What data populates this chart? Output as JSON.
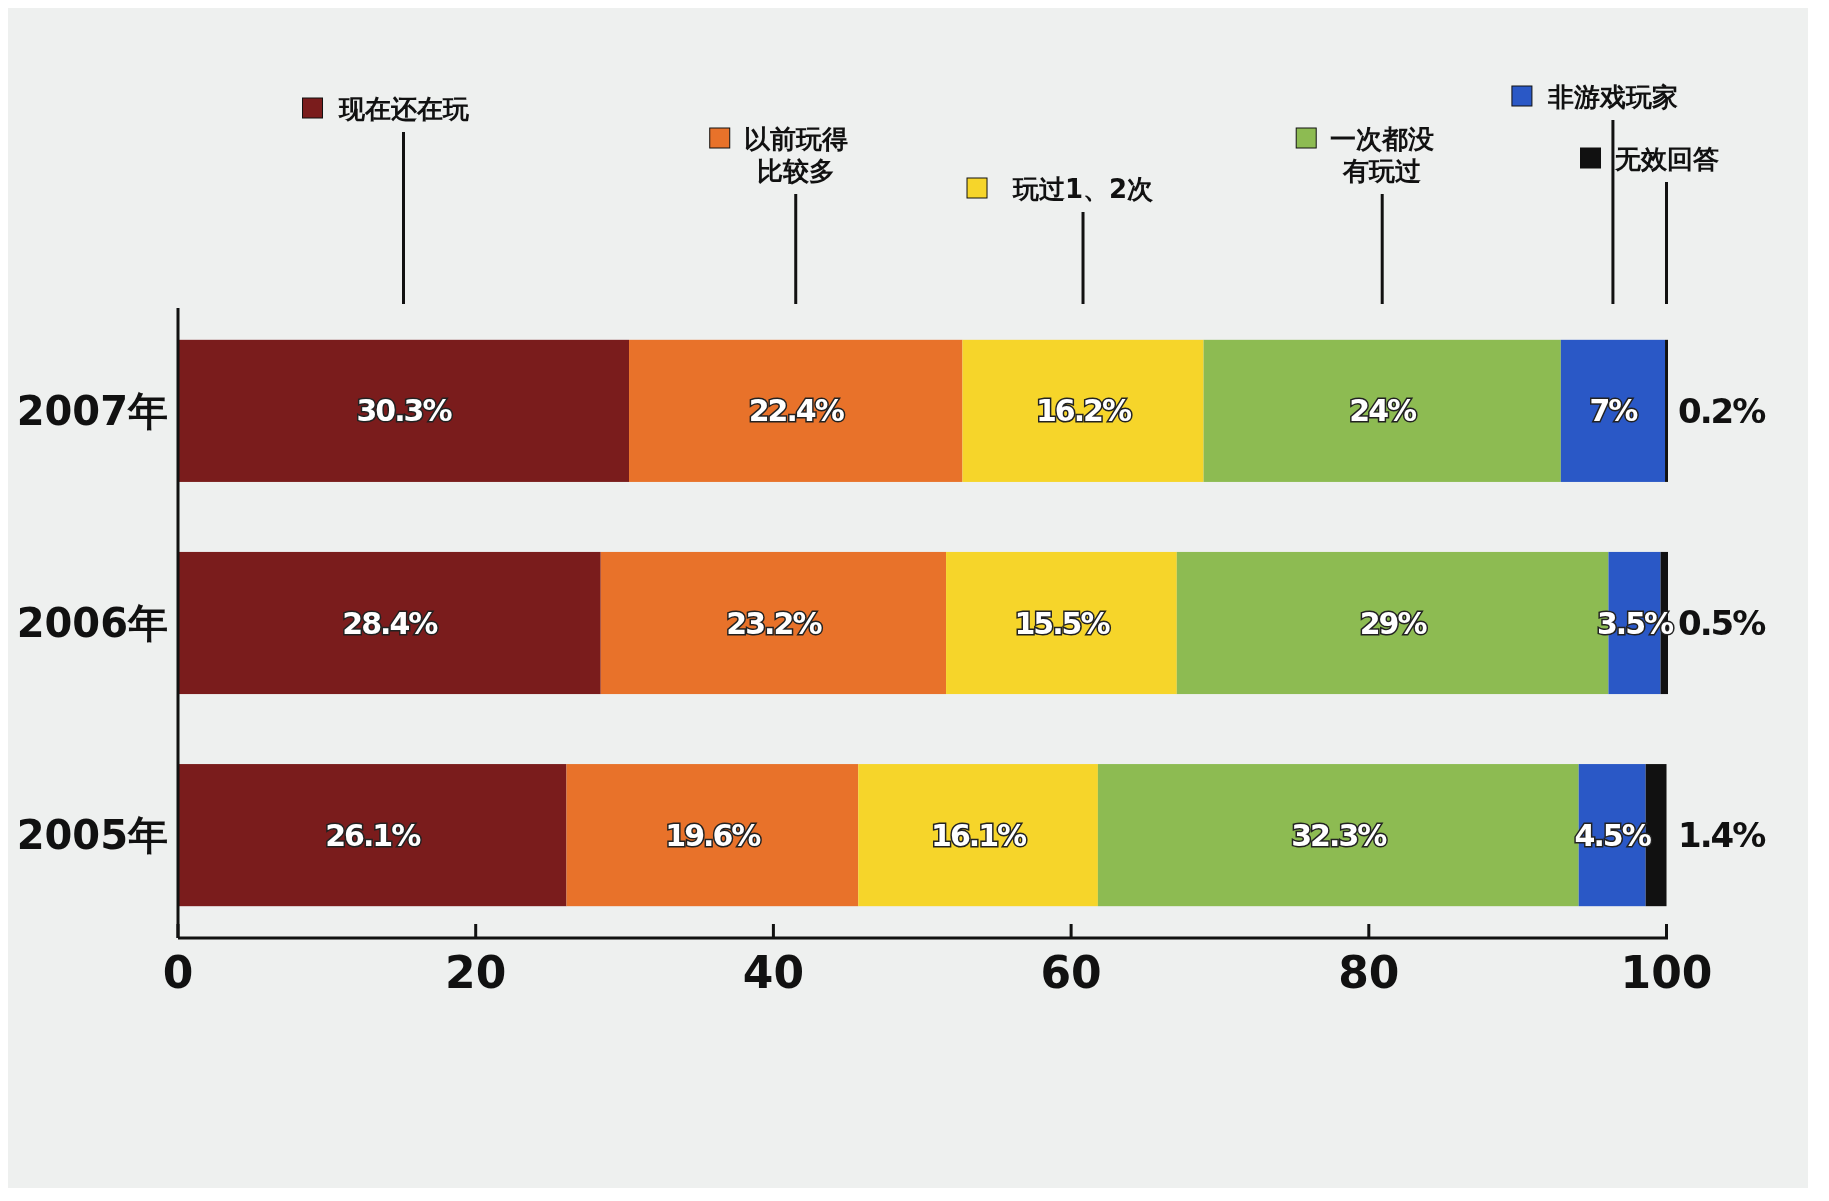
{
  "chart_data": {
    "type": "bar",
    "orientation": "horizontal",
    "stacked": true,
    "categories": [
      "2007年",
      "2006年",
      "2005年"
    ],
    "xlim": [
      0,
      100.1
    ],
    "xticks": [
      0,
      20,
      40,
      60,
      80,
      100
    ],
    "legend": "top",
    "series": [
      {
        "name": "现在还在玩",
        "color": "#7a1c1c",
        "values": [
          30.3,
          28.4,
          26.1
        ],
        "value_labels": [
          "30.3%",
          "28.4%",
          "26.1%"
        ]
      },
      {
        "name": "以前玩得比较多",
        "color": "#e8722a",
        "values": [
          22.4,
          23.2,
          19.6
        ],
        "value_labels": [
          "22.4%",
          "23.2%",
          "19.6%"
        ]
      },
      {
        "name": "玩过1、2次",
        "color": "#f6d52a",
        "values": [
          16.2,
          15.5,
          16.1
        ],
        "value_labels": [
          "16.2%",
          "15.5%",
          "16.1%"
        ]
      },
      {
        "name": "一次都没有玩过",
        "color": "#8dbb52",
        "values": [
          24,
          29,
          32.3
        ],
        "value_labels": [
          "24%",
          "29%",
          "32.3%"
        ]
      },
      {
        "name": "非游戏玩家",
        "color": "#2a58c6",
        "values": [
          7,
          3.5,
          4.5
        ],
        "value_labels": [
          "7%",
          "3.5%",
          "4.5%"
        ]
      },
      {
        "name": "无效回答",
        "color": "#111111",
        "values": [
          0.2,
          0.5,
          1.4
        ],
        "value_labels": [
          "0.2%",
          "0.5%",
          "1.4%"
        ]
      }
    ]
  }
}
